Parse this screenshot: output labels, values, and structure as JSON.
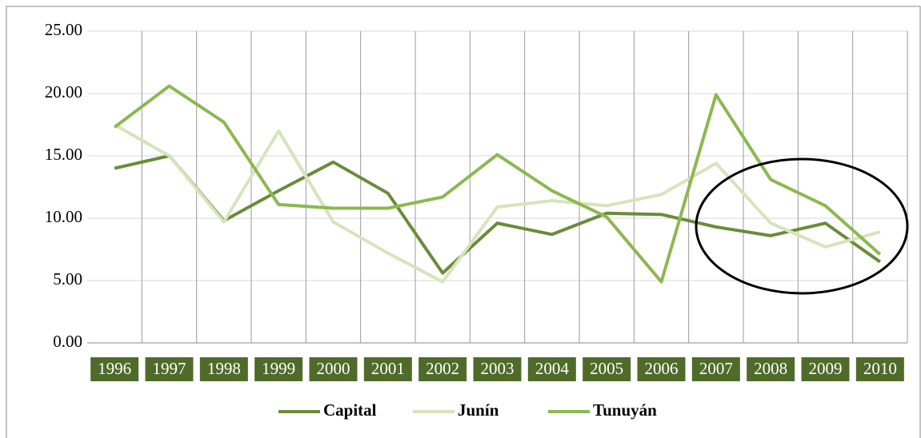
{
  "chart_data": {
    "type": "line",
    "categories": [
      "1996",
      "1997",
      "1998",
      "1999",
      "2000",
      "2001",
      "2002",
      "2003",
      "2004",
      "2005",
      "2006",
      "2007",
      "2008",
      "2009",
      "2010"
    ],
    "series": [
      {
        "name": "Capital",
        "color": "#6a8c3a",
        "values": [
          14.0,
          15.0,
          9.8,
          12.2,
          14.5,
          12.0,
          5.6,
          9.6,
          8.7,
          10.4,
          10.3,
          9.3,
          8.6,
          9.6,
          6.5
        ]
      },
      {
        "name": "Junín",
        "color": "#d6e4bb",
        "values": [
          17.5,
          15.0,
          9.7,
          17.0,
          9.7,
          7.2,
          4.9,
          10.9,
          11.4,
          11.0,
          11.9,
          14.4,
          9.6,
          7.7,
          8.9
        ]
      },
      {
        "name": "Tunuyán",
        "color": "#8cb850",
        "values": [
          17.3,
          20.6,
          17.7,
          11.1,
          10.8,
          10.8,
          11.7,
          15.1,
          12.2,
          10.1,
          4.9,
          19.9,
          13.1,
          11.0,
          7.1
        ]
      }
    ],
    "ylim": [
      0,
      25
    ],
    "yticks": [
      {
        "value": 0,
        "label": "0.00"
      },
      {
        "value": 5,
        "label": "5.00"
      },
      {
        "value": 10,
        "label": "10.00"
      },
      {
        "value": 15,
        "label": "15.00"
      },
      {
        "value": 20,
        "label": "20.00"
      },
      {
        "value": 25,
        "label": "25.00"
      }
    ],
    "grid": true,
    "category_label_color": "#4f6b2a",
    "legend": "bottom"
  }
}
